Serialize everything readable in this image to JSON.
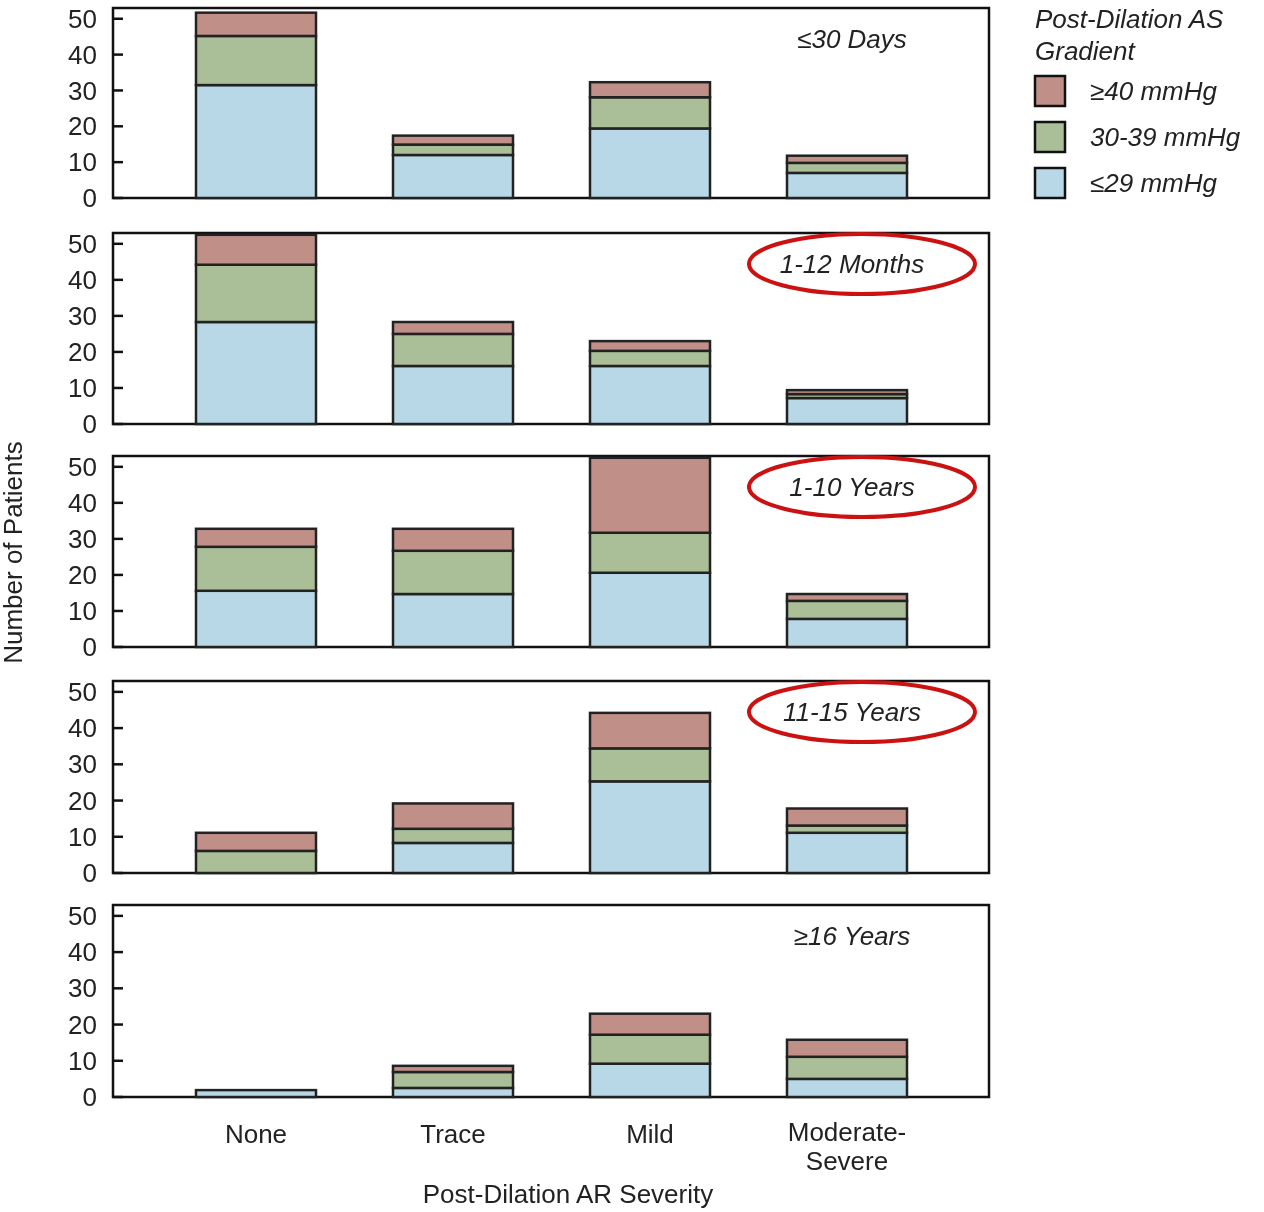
{
  "chart_data": [
    {
      "type": "bar",
      "title": "≤30 Days",
      "stacked": true,
      "ylim": [
        0,
        53
      ],
      "yticks": [
        0,
        10,
        20,
        30,
        40,
        50
      ],
      "tick_labels": "y",
      "legend": "right",
      "legend_title": "Post-Dilation AS Gradient",
      "series": [
        {
          "name": "≤29 mmHg",
          "color": "#b8d8e8",
          "values": [
            31.5,
            12,
            19.4,
            7
          ]
        },
        {
          "name": "30-39 mmHg",
          "color": "#aabf98",
          "values": [
            13.7,
            2.9,
            8.7,
            2.8
          ]
        },
        {
          "name": "≥40 mmHg",
          "color": "#c09088",
          "values": [
            6.5,
            2.5,
            4.2,
            2
          ]
        }
      ]
    },
    {
      "type": "bar",
      "title": "1-12 Months",
      "stacked": true,
      "ylim": [
        0,
        53
      ],
      "yticks": [
        0,
        10,
        20,
        30,
        40,
        50
      ],
      "tick_labels": "y",
      "series": [
        {
          "color": "#b8d8e8",
          "values": [
            28.3,
            16.1,
            16.1,
            7.2
          ]
        },
        {
          "color": "#aabf98",
          "values": [
            15.9,
            8.9,
            4.2,
            1.1
          ]
        },
        {
          "color": "#c09088",
          "values": [
            8.3,
            3.3,
            2.7,
            1.1
          ]
        }
      ]
    },
    {
      "type": "bar",
      "title": "1-10 Years",
      "ylabel": "Number of Patients",
      "stacked": true,
      "ylim": [
        0,
        53
      ],
      "yticks": [
        0,
        10,
        20,
        30,
        40,
        50
      ],
      "tick_labels": "y",
      "series": [
        {
          "color": "#b8d8e8",
          "values": [
            15.6,
            14.7,
            20.6,
            7.8
          ]
        },
        {
          "color": "#aabf98",
          "values": [
            12.2,
            12,
            11.1,
            5
          ]
        },
        {
          "color": "#c09088",
          "values": [
            5,
            6.1,
            20.8,
            1.9
          ]
        }
      ]
    },
    {
      "type": "bar",
      "title": "11-15 Years",
      "stacked": true,
      "ylim": [
        0,
        53
      ],
      "yticks": [
        0,
        10,
        20,
        30,
        40,
        50
      ],
      "tick_labels": "y",
      "series": [
        {
          "color": "#b8d8e8",
          "values": [
            0,
            8.3,
            25.3,
            11.1
          ]
        },
        {
          "color": "#aabf98",
          "values": [
            6.1,
            3.9,
            9.1,
            2
          ]
        },
        {
          "color": "#c09088",
          "values": [
            5,
            7,
            9.8,
            4.7
          ]
        }
      ]
    },
    {
      "type": "bar",
      "title": "≥16 Years",
      "xlabel": "Post-Dilation AR Severity",
      "stacked": true,
      "categories": [
        "None",
        "Trace",
        "Mild",
        "Moderate-Severe"
      ],
      "ylim": [
        0,
        53
      ],
      "yticks": [
        0,
        10,
        20,
        30,
        40,
        50
      ],
      "series": [
        {
          "color": "#b8d8e8",
          "values": [
            1.9,
            2.5,
            9.2,
            5
          ]
        },
        {
          "color": "#aabf98",
          "values": [
            0,
            4.4,
            8,
            6.1
          ]
        },
        {
          "color": "#c09088",
          "values": [
            0,
            1.7,
            5.8,
            4.7
          ]
        }
      ]
    }
  ]
}
